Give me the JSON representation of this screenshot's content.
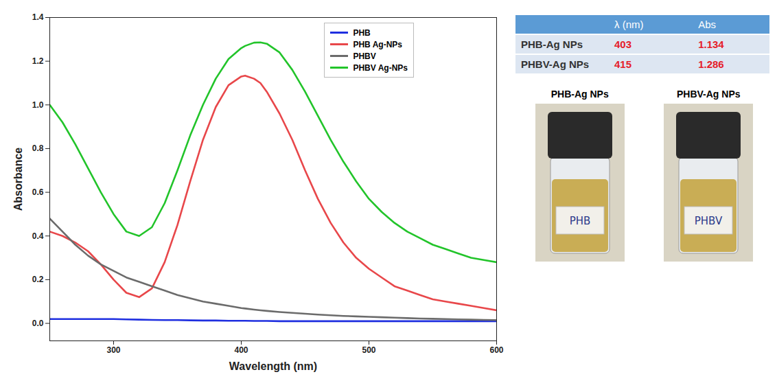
{
  "chart_data": {
    "type": "line",
    "x_label": "Wavelength (nm)",
    "y_label": "Absorbance",
    "x": [
      250,
      260,
      270,
      280,
      290,
      300,
      310,
      320,
      330,
      340,
      350,
      360,
      370,
      380,
      390,
      400,
      403,
      410,
      415,
      420,
      430,
      440,
      450,
      460,
      470,
      480,
      490,
      500,
      510,
      520,
      530,
      540,
      550,
      560,
      570,
      580,
      590,
      600
    ],
    "series": [
      {
        "name": "PHB",
        "color": "#1f2fe0",
        "values": [
          0.02,
          0.02,
          0.02,
          0.02,
          0.02,
          0.02,
          0.018,
          0.017,
          0.016,
          0.015,
          0.015,
          0.014,
          0.013,
          0.013,
          0.012,
          0.012,
          0.012,
          0.011,
          0.011,
          0.011,
          0.01,
          0.01,
          0.01,
          0.01,
          0.01,
          0.01,
          0.01,
          0.01,
          0.01,
          0.01,
          0.01,
          0.01,
          0.01,
          0.01,
          0.01,
          0.01,
          0.01,
          0.01
        ]
      },
      {
        "name": "PHB Ag-NPs",
        "color": "#e8474a",
        "values": [
          0.42,
          0.4,
          0.37,
          0.33,
          0.27,
          0.2,
          0.14,
          0.12,
          0.16,
          0.28,
          0.45,
          0.65,
          0.84,
          0.99,
          1.09,
          1.13,
          1.134,
          1.12,
          1.1,
          1.06,
          0.96,
          0.84,
          0.7,
          0.57,
          0.46,
          0.37,
          0.3,
          0.25,
          0.21,
          0.17,
          0.15,
          0.13,
          0.11,
          0.1,
          0.09,
          0.08,
          0.07,
          0.06
        ]
      },
      {
        "name": "PHBV",
        "color": "#6b6b6b",
        "values": [
          0.48,
          0.42,
          0.36,
          0.31,
          0.27,
          0.24,
          0.21,
          0.19,
          0.17,
          0.15,
          0.13,
          0.115,
          0.1,
          0.09,
          0.08,
          0.07,
          0.068,
          0.063,
          0.06,
          0.057,
          0.052,
          0.048,
          0.044,
          0.04,
          0.037,
          0.034,
          0.032,
          0.03,
          0.028,
          0.026,
          0.024,
          0.022,
          0.021,
          0.02,
          0.018,
          0.017,
          0.016,
          0.015
        ]
      },
      {
        "name": "PHBV Ag-NPs",
        "color": "#22c42a",
        "values": [
          1.0,
          0.92,
          0.82,
          0.71,
          0.6,
          0.5,
          0.42,
          0.4,
          0.44,
          0.55,
          0.7,
          0.86,
          1.0,
          1.12,
          1.21,
          1.26,
          1.27,
          1.285,
          1.286,
          1.28,
          1.24,
          1.16,
          1.06,
          0.95,
          0.84,
          0.74,
          0.65,
          0.57,
          0.51,
          0.46,
          0.42,
          0.39,
          0.36,
          0.34,
          0.32,
          0.3,
          0.29,
          0.28
        ]
      }
    ],
    "xlim": [
      250,
      600
    ],
    "xticks": [
      300,
      400,
      500,
      600
    ],
    "ylim": [
      -0.08,
      1.4
    ],
    "yticks": [
      {
        "value": 0,
        "label": "0.0"
      },
      {
        "value": 0.2,
        "label": "0.2"
      },
      {
        "value": 0.4,
        "label": "0.4"
      },
      {
        "value": 0.6,
        "label": "0.6"
      },
      {
        "value": 0.8,
        "label": "0.8"
      },
      {
        "value": 1.0,
        "label": "1.0"
      },
      {
        "value": 1.2,
        "label": "1.2"
      },
      {
        "value": 1.4,
        "label": "1.4"
      }
    ],
    "grid": false,
    "legend": "top-right"
  },
  "table": {
    "header": [
      "",
      "λ (nm)",
      "Abs"
    ],
    "rows": [
      [
        "PHB-Ag NPs",
        403,
        1.134
      ],
      [
        "PHBV-Ag NPs",
        415,
        1.286
      ]
    ]
  },
  "photo": {
    "captions": [
      "PHB-Ag NPs",
      "PHBV-Ag NPs"
    ],
    "vial_labels": [
      "PHB",
      "PHBV"
    ]
  }
}
